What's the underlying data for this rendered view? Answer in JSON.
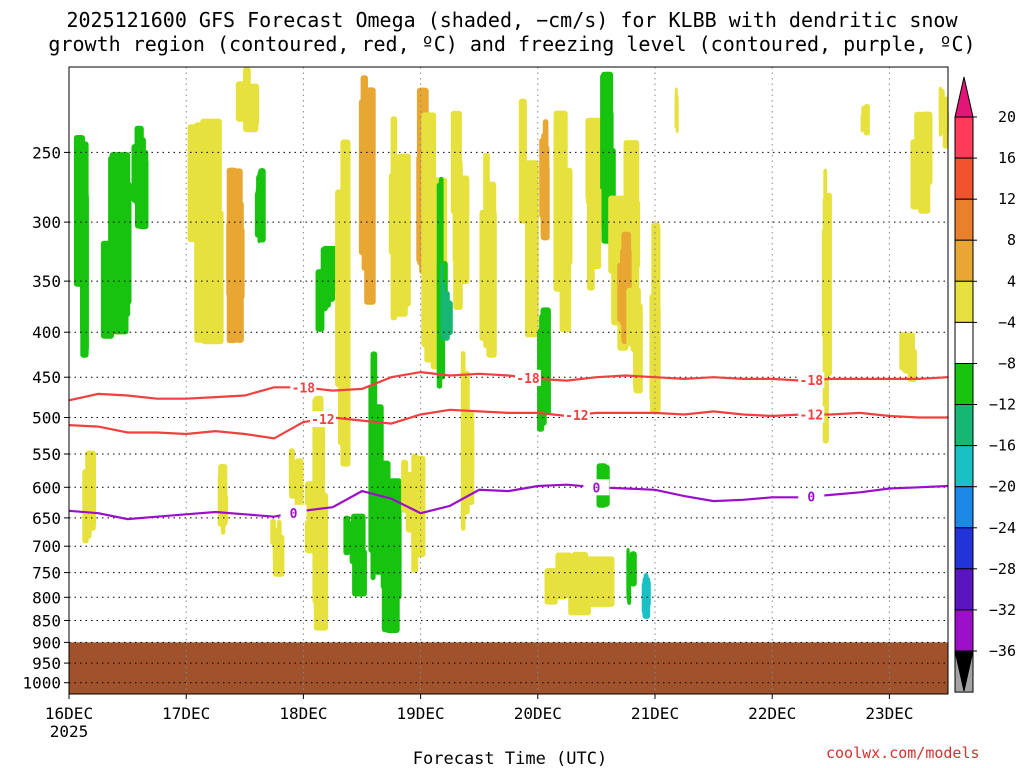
{
  "title_line1": "2025121600 GFS Forecast Omega (shaded, −cm/s) for KLBB with dendritic snow",
  "title_line2": "growth region (contoured, red, ºC) and freezing level (contoured, purple, ºC)",
  "credit": "coolwx.com/models",
  "chart_data": {
    "type": "heatmap",
    "xlabel": "Forecast Time (UTC)",
    "ylabel": "",
    "x_ticks": [
      "16DEC",
      "17DEC",
      "18DEC",
      "19DEC",
      "20DEC",
      "21DEC",
      "22DEC",
      "23DEC"
    ],
    "x_year_label": "2025",
    "xlim_hours": [
      0,
      180
    ],
    "y_ticks": [
      250,
      300,
      350,
      400,
      450,
      500,
      550,
      600,
      650,
      700,
      750,
      800,
      850,
      900,
      950,
      1000
    ],
    "ylim_hpa": [
      200,
      1030
    ],
    "surface_pressure_hpa": 900,
    "colorbar": {
      "labels": [
        "20",
        "16",
        "12",
        "8",
        "4",
        "−4",
        "−8",
        "−12",
        "−16",
        "−20",
        "−24",
        "−28",
        "−32",
        "−36"
      ],
      "colors": [
        "#ff3a5a",
        "#f0532d",
        "#e9802c",
        "#e7a732",
        "#e7e13e",
        "#ffffff",
        "#17c30e",
        "#16b673",
        "#19c0c4",
        "#1a88e6",
        "#2234d8",
        "#5a14c0",
        "#9b0fc8",
        "#a3a3a3"
      ],
      "top_arrow_color": "#e11676",
      "bottom_arrow_color": "#000000"
    },
    "contour_labels": {
      "dgz_upper": "-18",
      "dgz_lower": "-12",
      "freezing": "0"
    },
    "series": [
      {
        "name": "-18C isotherm",
        "color": "#f04040",
        "hours": [
          0,
          6,
          12,
          18,
          24,
          30,
          36,
          42,
          48,
          54,
          60,
          66,
          72,
          78,
          84,
          90,
          96,
          102,
          108,
          114,
          120,
          126,
          132,
          138,
          144,
          150,
          156,
          162,
          168,
          174,
          180
        ],
        "hpa": [
          478,
          470,
          472,
          476,
          476,
          474,
          472,
          462,
          462,
          466,
          464,
          450,
          444,
          448,
          446,
          448,
          452,
          454,
          450,
          448,
          450,
          452,
          450,
          452,
          452,
          454,
          452,
          452,
          452,
          452,
          450
        ]
      },
      {
        "name": "-12C isotherm",
        "color": "#f04040",
        "hours": [
          0,
          6,
          12,
          18,
          24,
          30,
          36,
          42,
          48,
          54,
          60,
          66,
          72,
          78,
          84,
          90,
          96,
          102,
          108,
          114,
          120,
          126,
          132,
          138,
          144,
          150,
          156,
          162,
          168,
          174,
          180
        ],
        "hpa": [
          510,
          512,
          520,
          520,
          522,
          518,
          522,
          528,
          506,
          500,
          504,
          508,
          496,
          490,
          492,
          494,
          494,
          498,
          494,
          494,
          494,
          496,
          492,
          496,
          498,
          496,
          496,
          494,
          498,
          500,
          500
        ]
      },
      {
        "name": "0C freezing level",
        "color": "#9b0fc8",
        "hours": [
          0,
          6,
          12,
          18,
          24,
          30,
          36,
          42,
          48,
          54,
          60,
          66,
          72,
          78,
          84,
          90,
          96,
          102,
          108,
          114,
          120,
          126,
          132,
          138,
          144,
          150,
          156,
          162,
          168,
          174,
          180
        ],
        "hpa": [
          638,
          642,
          652,
          648,
          644,
          640,
          644,
          648,
          638,
          632,
          606,
          618,
          642,
          630,
          604,
          606,
          598,
          596,
          600,
          602,
          604,
          614,
          622,
          620,
          616,
          616,
          612,
          608,
          602,
          600,
          598
        ]
      }
    ]
  }
}
